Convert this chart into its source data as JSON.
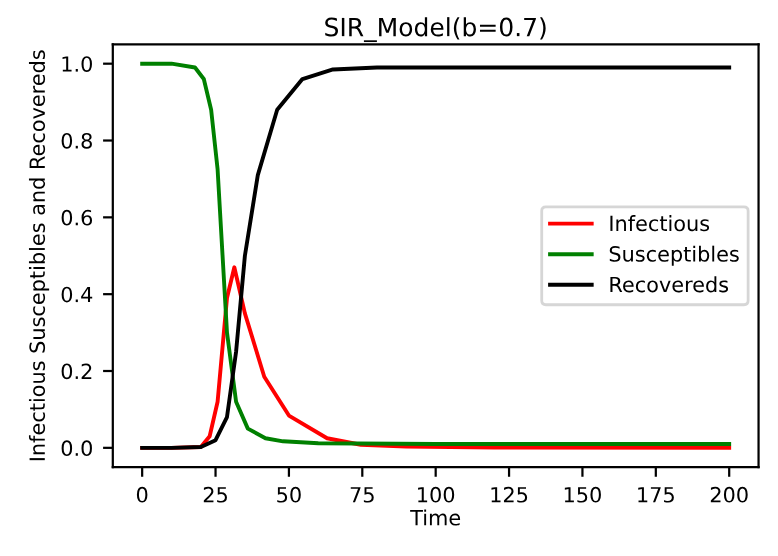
{
  "chart_data": {
    "type": "line",
    "title": "SIR_Model(b=0.7)",
    "xlabel": "Time",
    "ylabel": "Infectious Susceptibles and Recovereds",
    "xlim": [
      -10,
      210
    ],
    "ylim": [
      -0.05,
      1.05
    ],
    "xticks": [
      0,
      25,
      50,
      75,
      100,
      125,
      150,
      175,
      200
    ],
    "yticks": [
      {
        "value": 0,
        "label": "0.0"
      },
      0.2,
      0.4,
      0.6,
      0.8,
      {
        "value": 1,
        "label": "1.0"
      }
    ],
    "legend": "right",
    "grid": false,
    "series": [
      {
        "name": "Infectious",
        "color": "#ff0000",
        "x": [
          0,
          10,
          20,
          23,
          25.7,
          28.9,
          31.4,
          35,
          41.6,
          50,
          63,
          74.5,
          90,
          120,
          200
        ],
        "values": [
          0.0,
          0.0,
          0.002,
          0.03,
          0.12,
          0.39,
          0.47,
          0.35,
          0.185,
          0.084,
          0.025,
          0.008,
          0.003,
          0.001,
          0.0
        ]
      },
      {
        "name": "Susceptibles",
        "color": "#008000",
        "x": [
          0,
          10,
          18,
          21,
          23.5,
          25.7,
          28.9,
          32,
          36,
          42,
          48,
          60,
          100,
          200
        ],
        "values": [
          1.0,
          1.0,
          0.99,
          0.96,
          0.88,
          0.725,
          0.3,
          0.12,
          0.05,
          0.025,
          0.017,
          0.012,
          0.01,
          0.01
        ]
      },
      {
        "name": "Recovereds",
        "color": "#000000",
        "x": [
          0,
          10,
          20,
          25,
          28.9,
          32,
          35,
          39.4,
          46,
          54.6,
          65,
          80,
          100,
          200
        ],
        "values": [
          0.0,
          0.0,
          0.002,
          0.02,
          0.08,
          0.25,
          0.5,
          0.71,
          0.88,
          0.96,
          0.985,
          0.99,
          0.99,
          0.99
        ]
      }
    ]
  }
}
